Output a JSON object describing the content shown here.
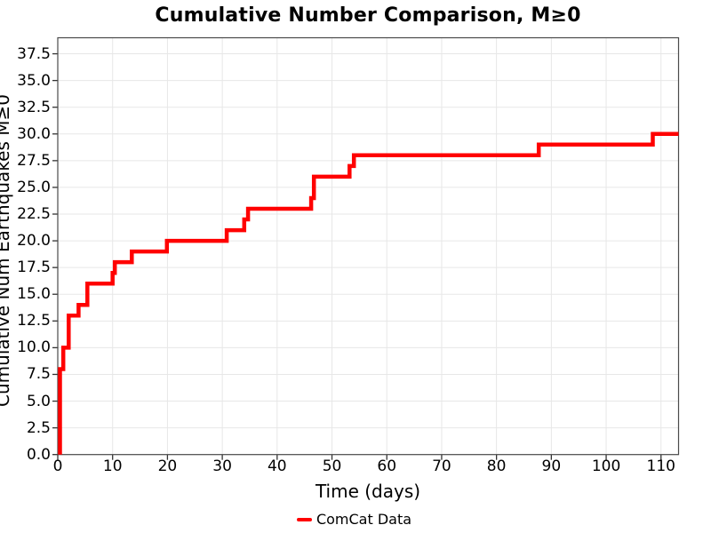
{
  "chart": {
    "title": "Cumulative Number Comparison, M≥0",
    "xlabel": "Time (days)",
    "ylabel": "Cumulative Num Earthquakes M≥0",
    "legend_label": "ComCat Data"
  },
  "colors": {
    "line": "#ff0000",
    "grid": "#e7e7e7",
    "spine": "#4a4a4a",
    "tick": "#333333",
    "text": "#000000",
    "background": "#ffffff"
  },
  "chart_data": {
    "type": "line",
    "style": "step",
    "title": "Cumulative Number Comparison, M≥0",
    "xlabel": "Time (days)",
    "ylabel": "Cumulative Num Earthquakes M≥0",
    "grid": true,
    "legend_position": "bottom-center",
    "xlim": [
      0,
      113.2
    ],
    "ylim": [
      0,
      39
    ],
    "xticks": {
      "values": [
        0,
        10,
        20,
        30,
        40,
        50,
        60,
        70,
        80,
        90,
        100,
        110
      ],
      "labels": [
        "0",
        "10",
        "20",
        "30",
        "40",
        "50",
        "60",
        "70",
        "80",
        "90",
        "100",
        "110"
      ]
    },
    "yticks": {
      "values": [
        0,
        2.5,
        5,
        7.5,
        10,
        12.5,
        15,
        17.5,
        20,
        22.5,
        25,
        27.5,
        30,
        32.5,
        35,
        37.5
      ],
      "labels": [
        "0.0",
        "2.5",
        "5.0",
        "7.5",
        "10.0",
        "12.5",
        "15.0",
        "17.5",
        "20.0",
        "22.5",
        "25.0",
        "27.5",
        "30.0",
        "32.5",
        "35.0",
        "37.5"
      ]
    },
    "series": [
      {
        "name": "ComCat Data",
        "color": "#ff0000",
        "points": [
          [
            0.4,
            0
          ],
          [
            0.4,
            8
          ],
          [
            1.0,
            8
          ],
          [
            1.0,
            10
          ],
          [
            2.0,
            10
          ],
          [
            2.0,
            13
          ],
          [
            3.8,
            13
          ],
          [
            3.8,
            14
          ],
          [
            5.4,
            14
          ],
          [
            5.4,
            16
          ],
          [
            10.0,
            16
          ],
          [
            10.0,
            17
          ],
          [
            10.4,
            17
          ],
          [
            10.4,
            18
          ],
          [
            13.5,
            18
          ],
          [
            13.5,
            19
          ],
          [
            19.9,
            19
          ],
          [
            19.9,
            20
          ],
          [
            30.8,
            20
          ],
          [
            30.8,
            21
          ],
          [
            34.0,
            21
          ],
          [
            34.0,
            22
          ],
          [
            34.7,
            22
          ],
          [
            34.7,
            23
          ],
          [
            46.2,
            23
          ],
          [
            46.2,
            24
          ],
          [
            46.7,
            24
          ],
          [
            46.7,
            26
          ],
          [
            53.2,
            26
          ],
          [
            53.2,
            27
          ],
          [
            54.0,
            27
          ],
          [
            54.0,
            28
          ],
          [
            87.7,
            28
          ],
          [
            87.7,
            29
          ],
          [
            108.5,
            29
          ],
          [
            108.5,
            30
          ],
          [
            113.2,
            30
          ]
        ]
      }
    ]
  }
}
